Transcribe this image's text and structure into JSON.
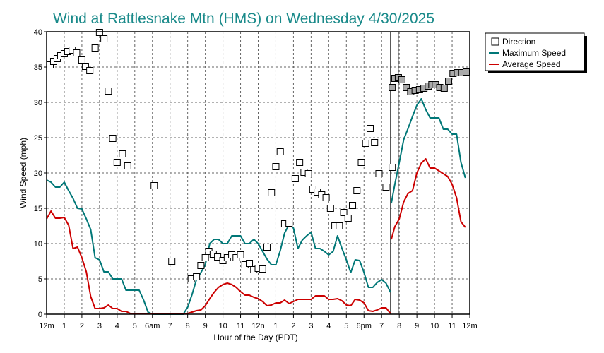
{
  "chart_data": {
    "type": "line",
    "title": "Wind at Rattlesnake Mtn (HMS) on Wednesday 4/30/2025",
    "xlabel": "Hour of the Day (PDT)",
    "ylabel": "Wind Speed (mph)",
    "xlim": [
      0,
      24
    ],
    "ylim": [
      0,
      40
    ],
    "x_ticks": [
      {
        "x": 0,
        "label": "12m"
      },
      {
        "x": 1,
        "label": "1"
      },
      {
        "x": 2,
        "label": "2"
      },
      {
        "x": 3,
        "label": "3"
      },
      {
        "x": 4,
        "label": "4"
      },
      {
        "x": 5,
        "label": "5"
      },
      {
        "x": 6,
        "label": "6am"
      },
      {
        "x": 7,
        "label": "7"
      },
      {
        "x": 8,
        "label": "8"
      },
      {
        "x": 9,
        "label": "9"
      },
      {
        "x": 10,
        "label": "10"
      },
      {
        "x": 11,
        "label": "11"
      },
      {
        "x": 12,
        "label": "12n"
      },
      {
        "x": 13,
        "label": "1"
      },
      {
        "x": 14,
        "label": "2"
      },
      {
        "x": 15,
        "label": "3"
      },
      {
        "x": 16,
        "label": "4"
      },
      {
        "x": 17,
        "label": "5"
      },
      {
        "x": 18,
        "label": "6pm"
      },
      {
        "x": 19,
        "label": "7"
      },
      {
        "x": 20,
        "label": "8"
      },
      {
        "x": 21,
        "label": "9"
      },
      {
        "x": 22,
        "label": "10"
      },
      {
        "x": 23,
        "label": "11"
      },
      {
        "x": 24,
        "label": "12m"
      }
    ],
    "y_ticks": [
      0,
      5,
      10,
      15,
      20,
      25,
      30,
      35,
      40
    ],
    "grid": true,
    "legend_position": "outside-top-right",
    "vertical_markers": [
      19.5,
      19.95
    ],
    "series": [
      {
        "name": "Direction",
        "kind": "scatter",
        "color": "#000000",
        "points": [
          [
            0.2,
            35.3
          ],
          [
            0.4,
            35.8
          ],
          [
            0.6,
            36.2
          ],
          [
            0.8,
            36.6
          ],
          [
            1.0,
            36.9
          ],
          [
            1.2,
            37.2
          ],
          [
            1.45,
            37.4
          ],
          [
            1.7,
            37.0
          ],
          [
            2.0,
            36.0
          ],
          [
            2.2,
            35.1
          ],
          [
            2.45,
            34.5
          ],
          [
            2.75,
            37.7
          ],
          [
            3.0,
            39.9
          ],
          [
            3.25,
            39.0
          ],
          [
            3.5,
            31.6
          ],
          [
            3.75,
            24.9
          ],
          [
            4.0,
            21.5
          ],
          [
            4.3,
            22.7
          ],
          [
            4.6,
            21.0
          ],
          [
            6.1,
            18.2
          ],
          [
            7.1,
            7.5
          ],
          [
            8.2,
            5.0
          ],
          [
            8.5,
            5.3
          ],
          [
            8.75,
            6.9
          ],
          [
            9.0,
            8.0
          ],
          [
            9.2,
            8.9
          ],
          [
            9.45,
            8.5
          ],
          [
            9.7,
            8.1
          ],
          [
            10.0,
            7.6
          ],
          [
            10.25,
            8.0
          ],
          [
            10.5,
            8.4
          ],
          [
            10.75,
            8.0
          ],
          [
            11.0,
            8.4
          ],
          [
            11.25,
            7.0
          ],
          [
            11.5,
            7.2
          ],
          [
            11.75,
            6.3
          ],
          [
            12.0,
            6.5
          ],
          [
            12.25,
            6.4
          ],
          [
            12.5,
            9.5
          ],
          [
            12.75,
            17.2
          ],
          [
            13.0,
            20.9
          ],
          [
            13.25,
            23.0
          ],
          [
            13.5,
            12.8
          ],
          [
            13.75,
            12.9
          ],
          [
            14.1,
            19.2
          ],
          [
            14.35,
            21.5
          ],
          [
            14.6,
            20.1
          ],
          [
            14.85,
            19.9
          ],
          [
            15.1,
            17.7
          ],
          [
            15.35,
            17.3
          ],
          [
            15.6,
            16.9
          ],
          [
            15.85,
            16.5
          ],
          [
            16.1,
            15.0
          ],
          [
            16.35,
            12.5
          ],
          [
            16.6,
            12.5
          ],
          [
            16.85,
            14.4
          ],
          [
            17.1,
            13.6
          ],
          [
            17.35,
            15.4
          ],
          [
            17.6,
            17.5
          ],
          [
            17.85,
            21.5
          ],
          [
            18.1,
            24.2
          ],
          [
            18.35,
            26.3
          ],
          [
            18.6,
            24.3
          ],
          [
            18.85,
            19.9
          ],
          [
            19.25,
            18.0
          ],
          [
            19.6,
            20.8
          ]
        ]
      },
      {
        "name": "Direction (after marker)",
        "kind": "scatter-filled",
        "color": "#808080",
        "points": [
          [
            19.6,
            32.1
          ],
          [
            19.75,
            33.4
          ],
          [
            19.95,
            33.5
          ],
          [
            20.15,
            33.2
          ],
          [
            20.4,
            32.1
          ],
          [
            20.65,
            31.5
          ],
          [
            20.9,
            31.7
          ],
          [
            21.15,
            31.8
          ],
          [
            21.4,
            32.0
          ],
          [
            21.65,
            32.3
          ],
          [
            21.85,
            32.5
          ],
          [
            22.05,
            32.5
          ],
          [
            22.3,
            32.1
          ],
          [
            22.55,
            32.0
          ],
          [
            22.8,
            33.0
          ],
          [
            23.05,
            34.1
          ],
          [
            23.3,
            34.2
          ],
          [
            23.55,
            34.2
          ],
          [
            23.8,
            34.3
          ]
        ]
      },
      {
        "name": "Maximum Speed",
        "kind": "line",
        "color": "#007777",
        "points": [
          [
            0,
            19.0
          ],
          [
            0.25,
            18.7
          ],
          [
            0.5,
            18.0
          ],
          [
            0.75,
            18.0
          ],
          [
            1.0,
            18.7
          ],
          [
            1.25,
            17.5
          ],
          [
            1.5,
            16.4
          ],
          [
            1.75,
            15.0
          ],
          [
            2.0,
            14.9
          ],
          [
            2.25,
            13.5
          ],
          [
            2.5,
            12.0
          ],
          [
            2.75,
            8.0
          ],
          [
            3.0,
            7.7
          ],
          [
            3.25,
            6.0
          ],
          [
            3.5,
            6.0
          ],
          [
            3.75,
            5.0
          ],
          [
            4.0,
            5.0
          ],
          [
            4.25,
            5.0
          ],
          [
            4.5,
            3.4
          ],
          [
            4.75,
            3.4
          ],
          [
            5.0,
            3.4
          ],
          [
            5.25,
            3.4
          ],
          [
            5.5,
            2.0
          ],
          [
            5.75,
            0.3
          ],
          [
            6.0,
            0.0
          ],
          [
            7.75,
            0.0
          ],
          [
            8.0,
            1.0
          ],
          [
            8.25,
            2.8
          ],
          [
            8.5,
            4.9
          ],
          [
            8.75,
            5.9
          ],
          [
            9.0,
            7.0
          ],
          [
            9.25,
            10.0
          ],
          [
            9.5,
            10.6
          ],
          [
            9.75,
            10.6
          ],
          [
            10.0,
            10.0
          ],
          [
            10.25,
            10.0
          ],
          [
            10.5,
            11.1
          ],
          [
            10.75,
            11.1
          ],
          [
            11.0,
            11.1
          ],
          [
            11.25,
            10.0
          ],
          [
            11.5,
            10.0
          ],
          [
            11.75,
            10.6
          ],
          [
            12.0,
            10.0
          ],
          [
            12.25,
            8.9
          ],
          [
            12.5,
            7.8
          ],
          [
            12.75,
            7.0
          ],
          [
            13.0,
            7.0
          ],
          [
            13.25,
            9.0
          ],
          [
            13.5,
            11.5
          ],
          [
            13.75,
            12.7
          ],
          [
            14.0,
            12.2
          ],
          [
            14.25,
            9.3
          ],
          [
            14.5,
            10.5
          ],
          [
            14.75,
            11.1
          ],
          [
            15.0,
            11.6
          ],
          [
            15.25,
            9.3
          ],
          [
            15.5,
            9.3
          ],
          [
            15.75,
            8.9
          ],
          [
            16.0,
            8.4
          ],
          [
            16.25,
            8.9
          ],
          [
            16.5,
            11.1
          ],
          [
            16.75,
            9.3
          ],
          [
            17.0,
            7.7
          ],
          [
            17.25,
            5.9
          ],
          [
            17.5,
            7.7
          ],
          [
            17.75,
            7.6
          ],
          [
            18.0,
            5.9
          ],
          [
            18.25,
            3.8
          ],
          [
            18.5,
            3.8
          ],
          [
            18.75,
            4.5
          ],
          [
            19.0,
            4.9
          ],
          [
            19.25,
            4.4
          ],
          [
            19.5,
            3.1
          ]
        ]
      },
      {
        "name": "Maximum Speed (after marker)",
        "kind": "line",
        "color": "#007777",
        "points": [
          [
            19.55,
            15.7
          ],
          [
            19.75,
            18.4
          ],
          [
            20.0,
            21.5
          ],
          [
            20.25,
            24.7
          ],
          [
            20.5,
            26.3
          ],
          [
            20.75,
            28.0
          ],
          [
            21.0,
            29.6
          ],
          [
            21.25,
            30.5
          ],
          [
            21.5,
            29.0
          ],
          [
            21.75,
            27.8
          ],
          [
            22.0,
            27.8
          ],
          [
            22.25,
            27.8
          ],
          [
            22.5,
            26.2
          ],
          [
            22.75,
            26.2
          ],
          [
            23.0,
            25.5
          ],
          [
            23.25,
            25.5
          ],
          [
            23.5,
            21.5
          ],
          [
            23.75,
            19.3
          ]
        ]
      },
      {
        "name": "Average Speed",
        "kind": "line",
        "color": "#cc0000",
        "points": [
          [
            0,
            13.5
          ],
          [
            0.25,
            14.6
          ],
          [
            0.5,
            13.6
          ],
          [
            0.75,
            13.6
          ],
          [
            1.0,
            13.7
          ],
          [
            1.25,
            12.6
          ],
          [
            1.5,
            9.3
          ],
          [
            1.75,
            9.5
          ],
          [
            2.0,
            8.0
          ],
          [
            2.25,
            6.0
          ],
          [
            2.5,
            2.5
          ],
          [
            2.75,
            0.8
          ],
          [
            3.0,
            0.8
          ],
          [
            3.25,
            0.9
          ],
          [
            3.5,
            1.3
          ],
          [
            3.75,
            0.8
          ],
          [
            4.0,
            0.8
          ],
          [
            4.25,
            0.4
          ],
          [
            4.5,
            0.4
          ],
          [
            4.75,
            0.1
          ],
          [
            5.0,
            0.1
          ],
          [
            8.0,
            0.1
          ],
          [
            8.25,
            0.3
          ],
          [
            8.5,
            0.5
          ],
          [
            8.75,
            0.6
          ],
          [
            9.0,
            1.2
          ],
          [
            9.25,
            2.2
          ],
          [
            9.5,
            3.1
          ],
          [
            9.75,
            3.8
          ],
          [
            10.0,
            4.2
          ],
          [
            10.25,
            4.4
          ],
          [
            10.5,
            4.2
          ],
          [
            10.75,
            3.8
          ],
          [
            11.0,
            3.2
          ],
          [
            11.25,
            2.7
          ],
          [
            11.5,
            2.7
          ],
          [
            11.75,
            2.4
          ],
          [
            12.0,
            2.2
          ],
          [
            12.25,
            1.8
          ],
          [
            12.5,
            1.2
          ],
          [
            12.75,
            1.3
          ],
          [
            13.0,
            1.6
          ],
          [
            13.25,
            1.6
          ],
          [
            13.5,
            2.0
          ],
          [
            13.75,
            1.5
          ],
          [
            14.0,
            1.8
          ],
          [
            14.25,
            2.1
          ],
          [
            14.5,
            2.1
          ],
          [
            14.75,
            2.1
          ],
          [
            15.0,
            2.1
          ],
          [
            15.25,
            2.6
          ],
          [
            15.5,
            2.6
          ],
          [
            15.75,
            2.6
          ],
          [
            16.0,
            2.1
          ],
          [
            16.25,
            2.1
          ],
          [
            16.5,
            2.2
          ],
          [
            16.75,
            1.9
          ],
          [
            17.0,
            1.3
          ],
          [
            17.25,
            1.2
          ],
          [
            17.5,
            2.1
          ],
          [
            17.75,
            2.0
          ],
          [
            18.0,
            1.6
          ],
          [
            18.25,
            0.5
          ],
          [
            18.5,
            0.4
          ],
          [
            18.75,
            0.6
          ],
          [
            19.0,
            0.9
          ],
          [
            19.25,
            0.9
          ],
          [
            19.5,
            0.1
          ]
        ]
      },
      {
        "name": "Average Speed (after marker)",
        "kind": "line",
        "color": "#cc0000",
        "points": [
          [
            19.55,
            10.6
          ],
          [
            19.75,
            12.4
          ],
          [
            20.0,
            13.5
          ],
          [
            20.25,
            15.9
          ],
          [
            20.5,
            17.1
          ],
          [
            20.75,
            17.5
          ],
          [
            21.0,
            20.0
          ],
          [
            21.25,
            21.4
          ],
          [
            21.5,
            22.0
          ],
          [
            21.75,
            20.7
          ],
          [
            22.0,
            20.7
          ],
          [
            22.25,
            20.3
          ],
          [
            22.5,
            19.9
          ],
          [
            22.75,
            19.5
          ],
          [
            23.0,
            18.4
          ],
          [
            23.25,
            16.5
          ],
          [
            23.5,
            13.1
          ],
          [
            23.75,
            12.3
          ]
        ]
      }
    ],
    "legend": [
      {
        "label": "Direction",
        "symbol": "square",
        "color": "#000000"
      },
      {
        "label": "Maximum Speed",
        "symbol": "line",
        "color": "#007777"
      },
      {
        "label": "Average Speed",
        "symbol": "line",
        "color": "#cc0000"
      }
    ]
  }
}
